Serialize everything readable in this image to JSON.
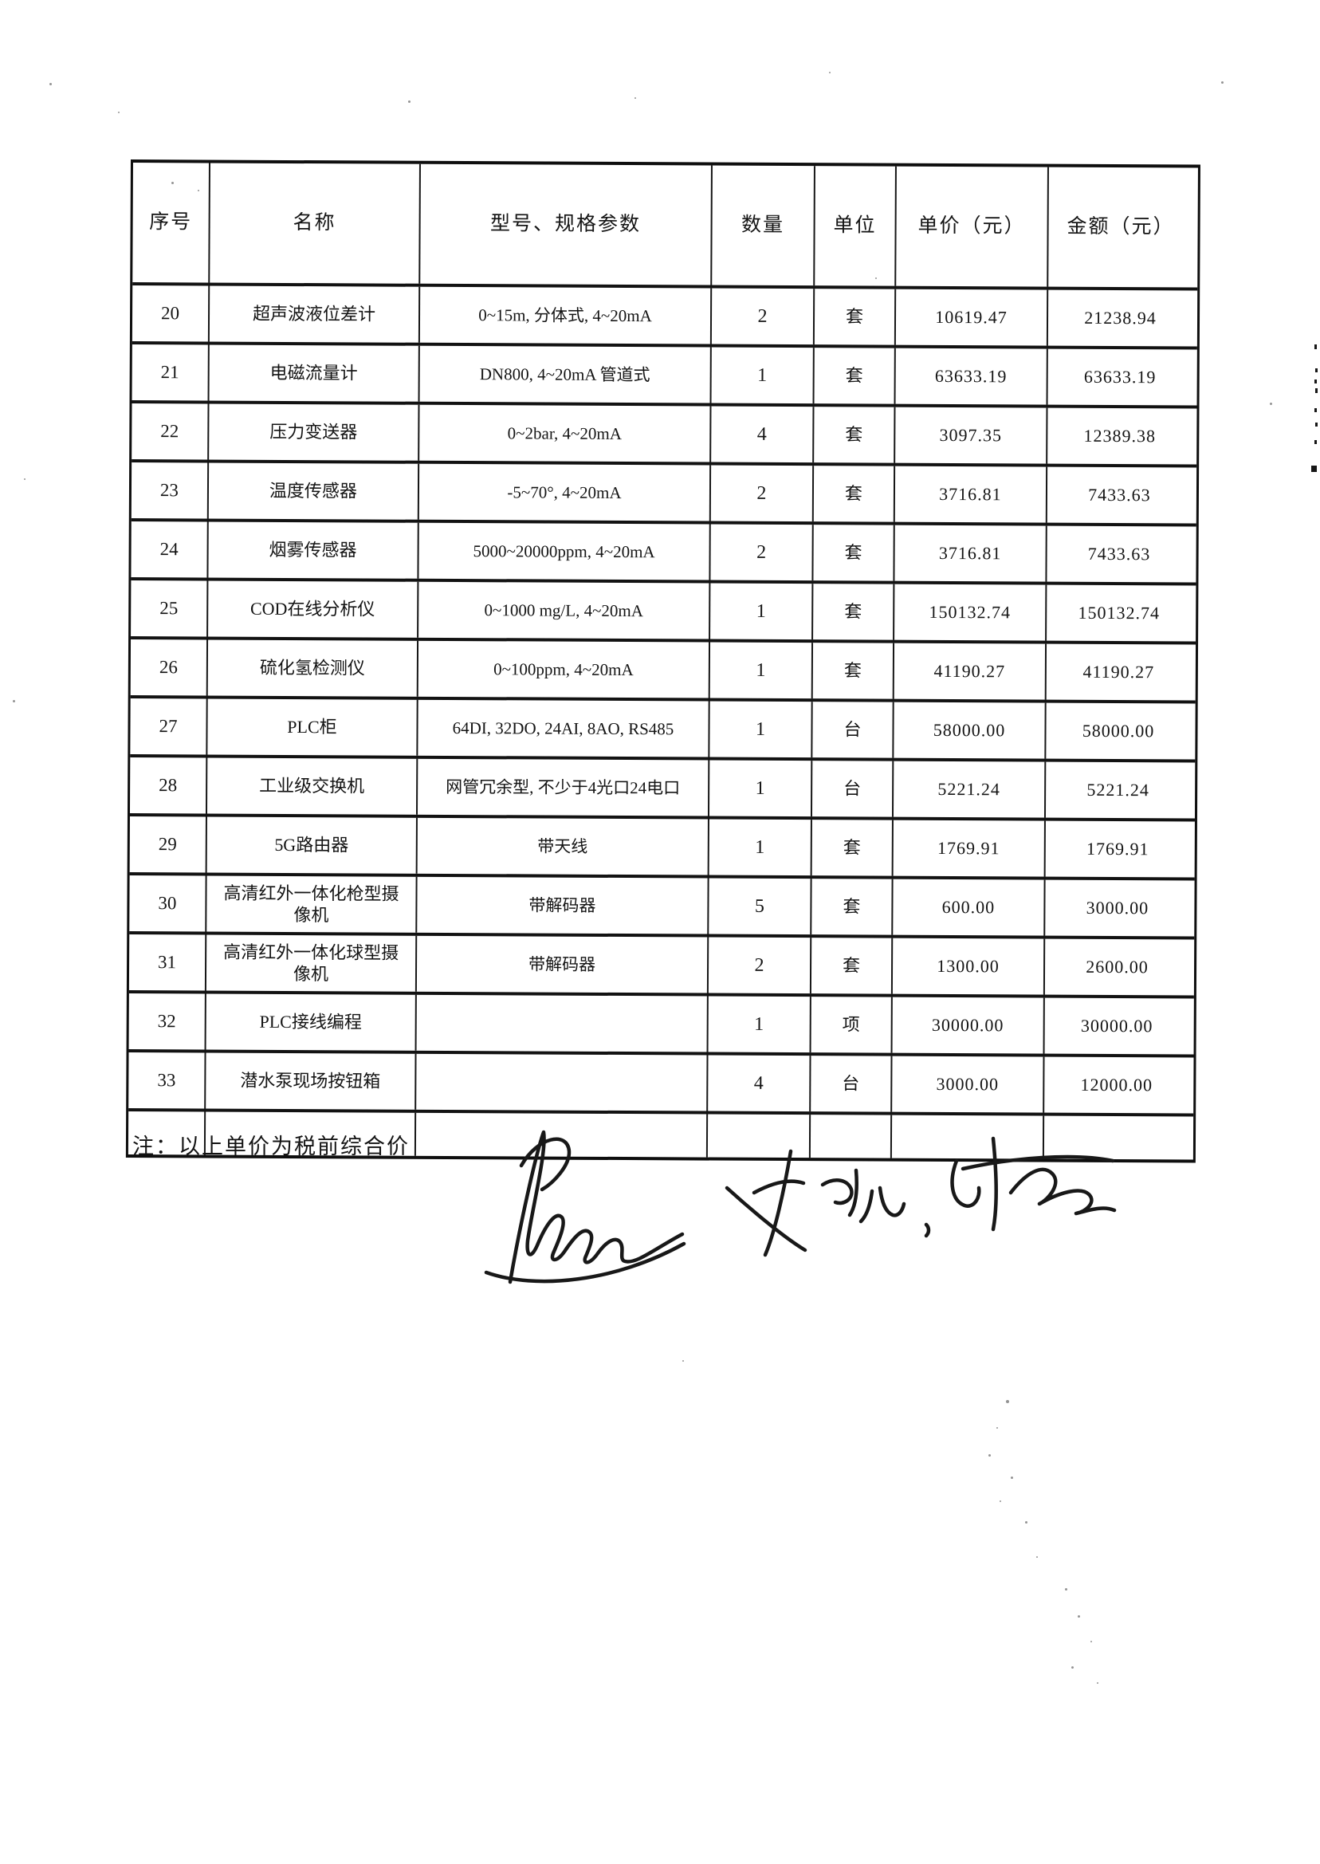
{
  "table": {
    "headers": [
      "序号",
      "名称",
      "型号、规格参数",
      "数量",
      "单位",
      "单价（元）",
      "金额（元）"
    ],
    "rows": [
      {
        "no": "20",
        "name": "超声波液位差计",
        "spec": "0~15m, 分体式, 4~20mA",
        "qty": "2",
        "unit": "套",
        "price": "10619.47",
        "amount": "21238.94"
      },
      {
        "no": "21",
        "name": "电磁流量计",
        "spec": "DN800, 4~20mA 管道式",
        "qty": "1",
        "unit": "套",
        "price": "63633.19",
        "amount": "63633.19"
      },
      {
        "no": "22",
        "name": "压力变送器",
        "spec": "0~2bar, 4~20mA",
        "qty": "4",
        "unit": "套",
        "price": "3097.35",
        "amount": "12389.38"
      },
      {
        "no": "23",
        "name": "温度传感器",
        "spec": "-5~70°, 4~20mA",
        "qty": "2",
        "unit": "套",
        "price": "3716.81",
        "amount": "7433.63"
      },
      {
        "no": "24",
        "name": "烟雾传感器",
        "spec": "5000~20000ppm, 4~20mA",
        "qty": "2",
        "unit": "套",
        "price": "3716.81",
        "amount": "7433.63"
      },
      {
        "no": "25",
        "name": "COD在线分析仪",
        "spec": "0~1000 mg/L, 4~20mA",
        "qty": "1",
        "unit": "套",
        "price": "150132.74",
        "amount": "150132.74"
      },
      {
        "no": "26",
        "name": "硫化氢检测仪",
        "spec": "0~100ppm, 4~20mA",
        "qty": "1",
        "unit": "套",
        "price": "41190.27",
        "amount": "41190.27"
      },
      {
        "no": "27",
        "name": "PLC柜",
        "spec": "64DI, 32DO, 24AI, 8AO, RS485",
        "qty": "1",
        "unit": "台",
        "price": "58000.00",
        "amount": "58000.00"
      },
      {
        "no": "28",
        "name": "工业级交换机",
        "spec": "网管冗余型, 不少于4光口24电口",
        "qty": "1",
        "unit": "台",
        "price": "5221.24",
        "amount": "5221.24"
      },
      {
        "no": "29",
        "name": "5G路由器",
        "spec": "带天线",
        "qty": "1",
        "unit": "套",
        "price": "1769.91",
        "amount": "1769.91"
      },
      {
        "no": "30",
        "name": "高清红外一体化枪型摄像机",
        "spec": "带解码器",
        "qty": "5",
        "unit": "套",
        "price": "600.00",
        "amount": "3000.00"
      },
      {
        "no": "31",
        "name": "高清红外一体化球型摄像机",
        "spec": "带解码器",
        "qty": "2",
        "unit": "套",
        "price": "1300.00",
        "amount": "2600.00"
      },
      {
        "no": "32",
        "name": "PLC接线编程",
        "spec": "",
        "qty": "1",
        "unit": "项",
        "price": "30000.00",
        "amount": "30000.00"
      },
      {
        "no": "33",
        "name": "潜水泵现场按钮箱",
        "spec": "",
        "qty": "4",
        "unit": "台",
        "price": "3000.00",
        "amount": "12000.00"
      },
      {
        "no": "",
        "name": "",
        "spec": "",
        "qty": "",
        "unit": "",
        "price": "",
        "amount": ""
      }
    ]
  },
  "note": "注：以上单价为税前综合价"
}
